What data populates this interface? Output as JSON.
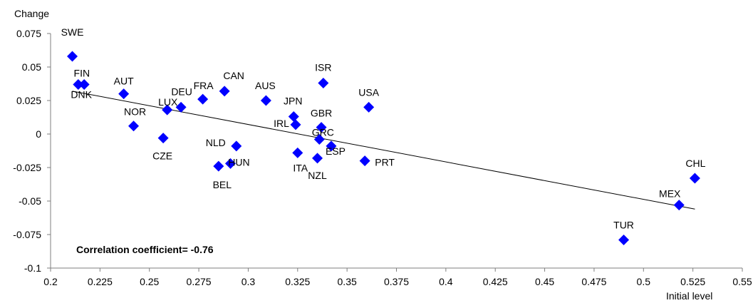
{
  "chart_data": {
    "type": "scatter",
    "ylabel": "Change",
    "xlabel": "Initial level",
    "xlim": [
      0.2,
      0.55
    ],
    "ylim": [
      -0.1,
      0.075
    ],
    "x_ticks": [
      "0.2",
      "0.225",
      "0.25",
      "0.275",
      "0.3",
      "0.325",
      "0.35",
      "0.375",
      "0.4",
      "0.425",
      "0.45",
      "0.475",
      "0.5",
      "0.525",
      "0.55"
    ],
    "y_ticks": [
      "0.075",
      "0.05",
      "0.025",
      "0",
      "-0.025",
      "-0.05",
      "-0.075",
      "-0.1"
    ],
    "grid": false,
    "marker_color": "#0000ff",
    "annotation": "Correlation coefficient=  -0.76",
    "trendline": {
      "x": [
        0.211,
        0.526
      ],
      "y": [
        0.032,
        -0.056
      ]
    },
    "points": [
      {
        "label": "SWE",
        "x": 0.211,
        "y": 0.058
      },
      {
        "label": "FIN",
        "x": 0.214,
        "y": 0.037
      },
      {
        "label": "DNK",
        "x": 0.217,
        "y": 0.037
      },
      {
        "label": "AUT",
        "x": 0.237,
        "y": 0.03
      },
      {
        "label": "NOR",
        "x": 0.242,
        "y": 0.006
      },
      {
        "label": "CZE",
        "x": 0.257,
        "y": -0.003
      },
      {
        "label": "LUX",
        "x": 0.259,
        "y": 0.018
      },
      {
        "label": "DEU",
        "x": 0.266,
        "y": 0.02
      },
      {
        "label": "FRA",
        "x": 0.277,
        "y": 0.026
      },
      {
        "label": "BEL",
        "x": 0.285,
        "y": -0.024
      },
      {
        "label": "CAN",
        "x": 0.288,
        "y": 0.032
      },
      {
        "label": "HUN",
        "x": 0.291,
        "y": -0.022
      },
      {
        "label": "NLD",
        "x": 0.294,
        "y": -0.009
      },
      {
        "label": "AUS",
        "x": 0.309,
        "y": 0.025
      },
      {
        "label": "JPN",
        "x": 0.323,
        "y": 0.013
      },
      {
        "label": "IRL",
        "x": 0.324,
        "y": 0.007
      },
      {
        "label": "ITA",
        "x": 0.325,
        "y": -0.014
      },
      {
        "label": "NZL",
        "x": 0.335,
        "y": -0.018
      },
      {
        "label": "GRC",
        "x": 0.336,
        "y": -0.004
      },
      {
        "label": "GBR",
        "x": 0.337,
        "y": 0.005
      },
      {
        "label": "ISR",
        "x": 0.338,
        "y": 0.038
      },
      {
        "label": "ESP",
        "x": 0.342,
        "y": -0.009
      },
      {
        "label": "PRT",
        "x": 0.359,
        "y": -0.02
      },
      {
        "label": "USA",
        "x": 0.361,
        "y": 0.02
      },
      {
        "label": "TUR",
        "x": 0.49,
        "y": -0.079
      },
      {
        "label": "MEX",
        "x": 0.518,
        "y": -0.053
      },
      {
        "label": "CHL",
        "x": 0.526,
        "y": -0.033
      }
    ]
  }
}
